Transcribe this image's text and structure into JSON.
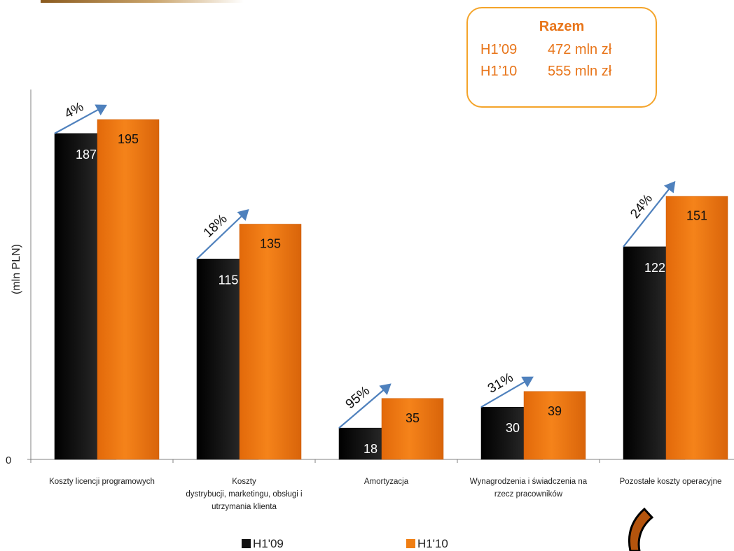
{
  "chart_data": {
    "type": "bar",
    "ylabel": "(mln PLN)",
    "ylim": [
      0,
      205
    ],
    "y_ticks": [
      "0"
    ],
    "categories": [
      [
        "Koszty licencji programowych"
      ],
      [
        "Koszty",
        "dystrybucji, marketingu, obsługi i",
        "utrzymania klienta"
      ],
      [
        "Amortyzacja"
      ],
      [
        "Wynagrodzenia i świadczenia na",
        "rzecz pracowników"
      ],
      [
        "Pozostałe koszty operacyjne"
      ]
    ],
    "series": [
      {
        "name": "H1'09",
        "color": "#111111",
        "values": [
          187,
          115,
          18,
          30,
          122
        ]
      },
      {
        "name": "H1'10",
        "color": "#f07e12",
        "values": [
          195,
          135,
          35,
          39,
          151
        ]
      }
    ],
    "changes": [
      "4%",
      "18%",
      "95%",
      "31%",
      "24%"
    ],
    "arrow_color": "#4f81bd",
    "legend_position": "bottom"
  },
  "summary": {
    "title": "Razem",
    "rows": [
      {
        "period": "H1’09",
        "value": "472 mln zł"
      },
      {
        "period": "H1’10",
        "value": "555 mln zł"
      }
    ]
  }
}
